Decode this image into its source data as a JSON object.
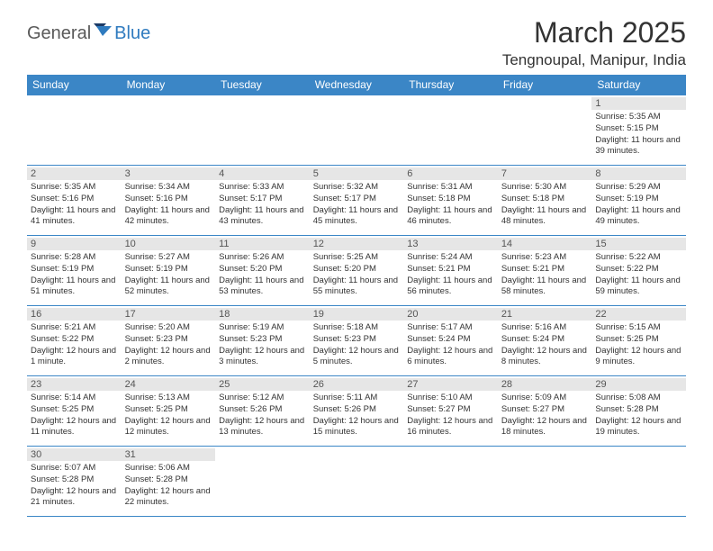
{
  "logo": {
    "part1": "General",
    "part2": "Blue"
  },
  "title": "March 2025",
  "location": "Tengnoupal, Manipur, India",
  "colors": {
    "header_bg": "#3b86c6",
    "header_text": "#ffffff",
    "daynum_bg": "#e6e6e6",
    "border": "#3b86c6",
    "logo_gray": "#5a5a5a",
    "logo_blue": "#2f7bbf"
  },
  "weekdays": [
    "Sunday",
    "Monday",
    "Tuesday",
    "Wednesday",
    "Thursday",
    "Friday",
    "Saturday"
  ],
  "weeks": [
    [
      null,
      null,
      null,
      null,
      null,
      null,
      {
        "n": "1",
        "sr": "Sunrise: 5:35 AM",
        "ss": "Sunset: 5:15 PM",
        "dl": "Daylight: 11 hours and 39 minutes."
      }
    ],
    [
      {
        "n": "2",
        "sr": "Sunrise: 5:35 AM",
        "ss": "Sunset: 5:16 PM",
        "dl": "Daylight: 11 hours and 41 minutes."
      },
      {
        "n": "3",
        "sr": "Sunrise: 5:34 AM",
        "ss": "Sunset: 5:16 PM",
        "dl": "Daylight: 11 hours and 42 minutes."
      },
      {
        "n": "4",
        "sr": "Sunrise: 5:33 AM",
        "ss": "Sunset: 5:17 PM",
        "dl": "Daylight: 11 hours and 43 minutes."
      },
      {
        "n": "5",
        "sr": "Sunrise: 5:32 AM",
        "ss": "Sunset: 5:17 PM",
        "dl": "Daylight: 11 hours and 45 minutes."
      },
      {
        "n": "6",
        "sr": "Sunrise: 5:31 AM",
        "ss": "Sunset: 5:18 PM",
        "dl": "Daylight: 11 hours and 46 minutes."
      },
      {
        "n": "7",
        "sr": "Sunrise: 5:30 AM",
        "ss": "Sunset: 5:18 PM",
        "dl": "Daylight: 11 hours and 48 minutes."
      },
      {
        "n": "8",
        "sr": "Sunrise: 5:29 AM",
        "ss": "Sunset: 5:19 PM",
        "dl": "Daylight: 11 hours and 49 minutes."
      }
    ],
    [
      {
        "n": "9",
        "sr": "Sunrise: 5:28 AM",
        "ss": "Sunset: 5:19 PM",
        "dl": "Daylight: 11 hours and 51 minutes."
      },
      {
        "n": "10",
        "sr": "Sunrise: 5:27 AM",
        "ss": "Sunset: 5:19 PM",
        "dl": "Daylight: 11 hours and 52 minutes."
      },
      {
        "n": "11",
        "sr": "Sunrise: 5:26 AM",
        "ss": "Sunset: 5:20 PM",
        "dl": "Daylight: 11 hours and 53 minutes."
      },
      {
        "n": "12",
        "sr": "Sunrise: 5:25 AM",
        "ss": "Sunset: 5:20 PM",
        "dl": "Daylight: 11 hours and 55 minutes."
      },
      {
        "n": "13",
        "sr": "Sunrise: 5:24 AM",
        "ss": "Sunset: 5:21 PM",
        "dl": "Daylight: 11 hours and 56 minutes."
      },
      {
        "n": "14",
        "sr": "Sunrise: 5:23 AM",
        "ss": "Sunset: 5:21 PM",
        "dl": "Daylight: 11 hours and 58 minutes."
      },
      {
        "n": "15",
        "sr": "Sunrise: 5:22 AM",
        "ss": "Sunset: 5:22 PM",
        "dl": "Daylight: 11 hours and 59 minutes."
      }
    ],
    [
      {
        "n": "16",
        "sr": "Sunrise: 5:21 AM",
        "ss": "Sunset: 5:22 PM",
        "dl": "Daylight: 12 hours and 1 minute."
      },
      {
        "n": "17",
        "sr": "Sunrise: 5:20 AM",
        "ss": "Sunset: 5:23 PM",
        "dl": "Daylight: 12 hours and 2 minutes."
      },
      {
        "n": "18",
        "sr": "Sunrise: 5:19 AM",
        "ss": "Sunset: 5:23 PM",
        "dl": "Daylight: 12 hours and 3 minutes."
      },
      {
        "n": "19",
        "sr": "Sunrise: 5:18 AM",
        "ss": "Sunset: 5:23 PM",
        "dl": "Daylight: 12 hours and 5 minutes."
      },
      {
        "n": "20",
        "sr": "Sunrise: 5:17 AM",
        "ss": "Sunset: 5:24 PM",
        "dl": "Daylight: 12 hours and 6 minutes."
      },
      {
        "n": "21",
        "sr": "Sunrise: 5:16 AM",
        "ss": "Sunset: 5:24 PM",
        "dl": "Daylight: 12 hours and 8 minutes."
      },
      {
        "n": "22",
        "sr": "Sunrise: 5:15 AM",
        "ss": "Sunset: 5:25 PM",
        "dl": "Daylight: 12 hours and 9 minutes."
      }
    ],
    [
      {
        "n": "23",
        "sr": "Sunrise: 5:14 AM",
        "ss": "Sunset: 5:25 PM",
        "dl": "Daylight: 12 hours and 11 minutes."
      },
      {
        "n": "24",
        "sr": "Sunrise: 5:13 AM",
        "ss": "Sunset: 5:25 PM",
        "dl": "Daylight: 12 hours and 12 minutes."
      },
      {
        "n": "25",
        "sr": "Sunrise: 5:12 AM",
        "ss": "Sunset: 5:26 PM",
        "dl": "Daylight: 12 hours and 13 minutes."
      },
      {
        "n": "26",
        "sr": "Sunrise: 5:11 AM",
        "ss": "Sunset: 5:26 PM",
        "dl": "Daylight: 12 hours and 15 minutes."
      },
      {
        "n": "27",
        "sr": "Sunrise: 5:10 AM",
        "ss": "Sunset: 5:27 PM",
        "dl": "Daylight: 12 hours and 16 minutes."
      },
      {
        "n": "28",
        "sr": "Sunrise: 5:09 AM",
        "ss": "Sunset: 5:27 PM",
        "dl": "Daylight: 12 hours and 18 minutes."
      },
      {
        "n": "29",
        "sr": "Sunrise: 5:08 AM",
        "ss": "Sunset: 5:28 PM",
        "dl": "Daylight: 12 hours and 19 minutes."
      }
    ],
    [
      {
        "n": "30",
        "sr": "Sunrise: 5:07 AM",
        "ss": "Sunset: 5:28 PM",
        "dl": "Daylight: 12 hours and 21 minutes."
      },
      {
        "n": "31",
        "sr": "Sunrise: 5:06 AM",
        "ss": "Sunset: 5:28 PM",
        "dl": "Daylight: 12 hours and 22 minutes."
      },
      null,
      null,
      null,
      null,
      null
    ]
  ]
}
